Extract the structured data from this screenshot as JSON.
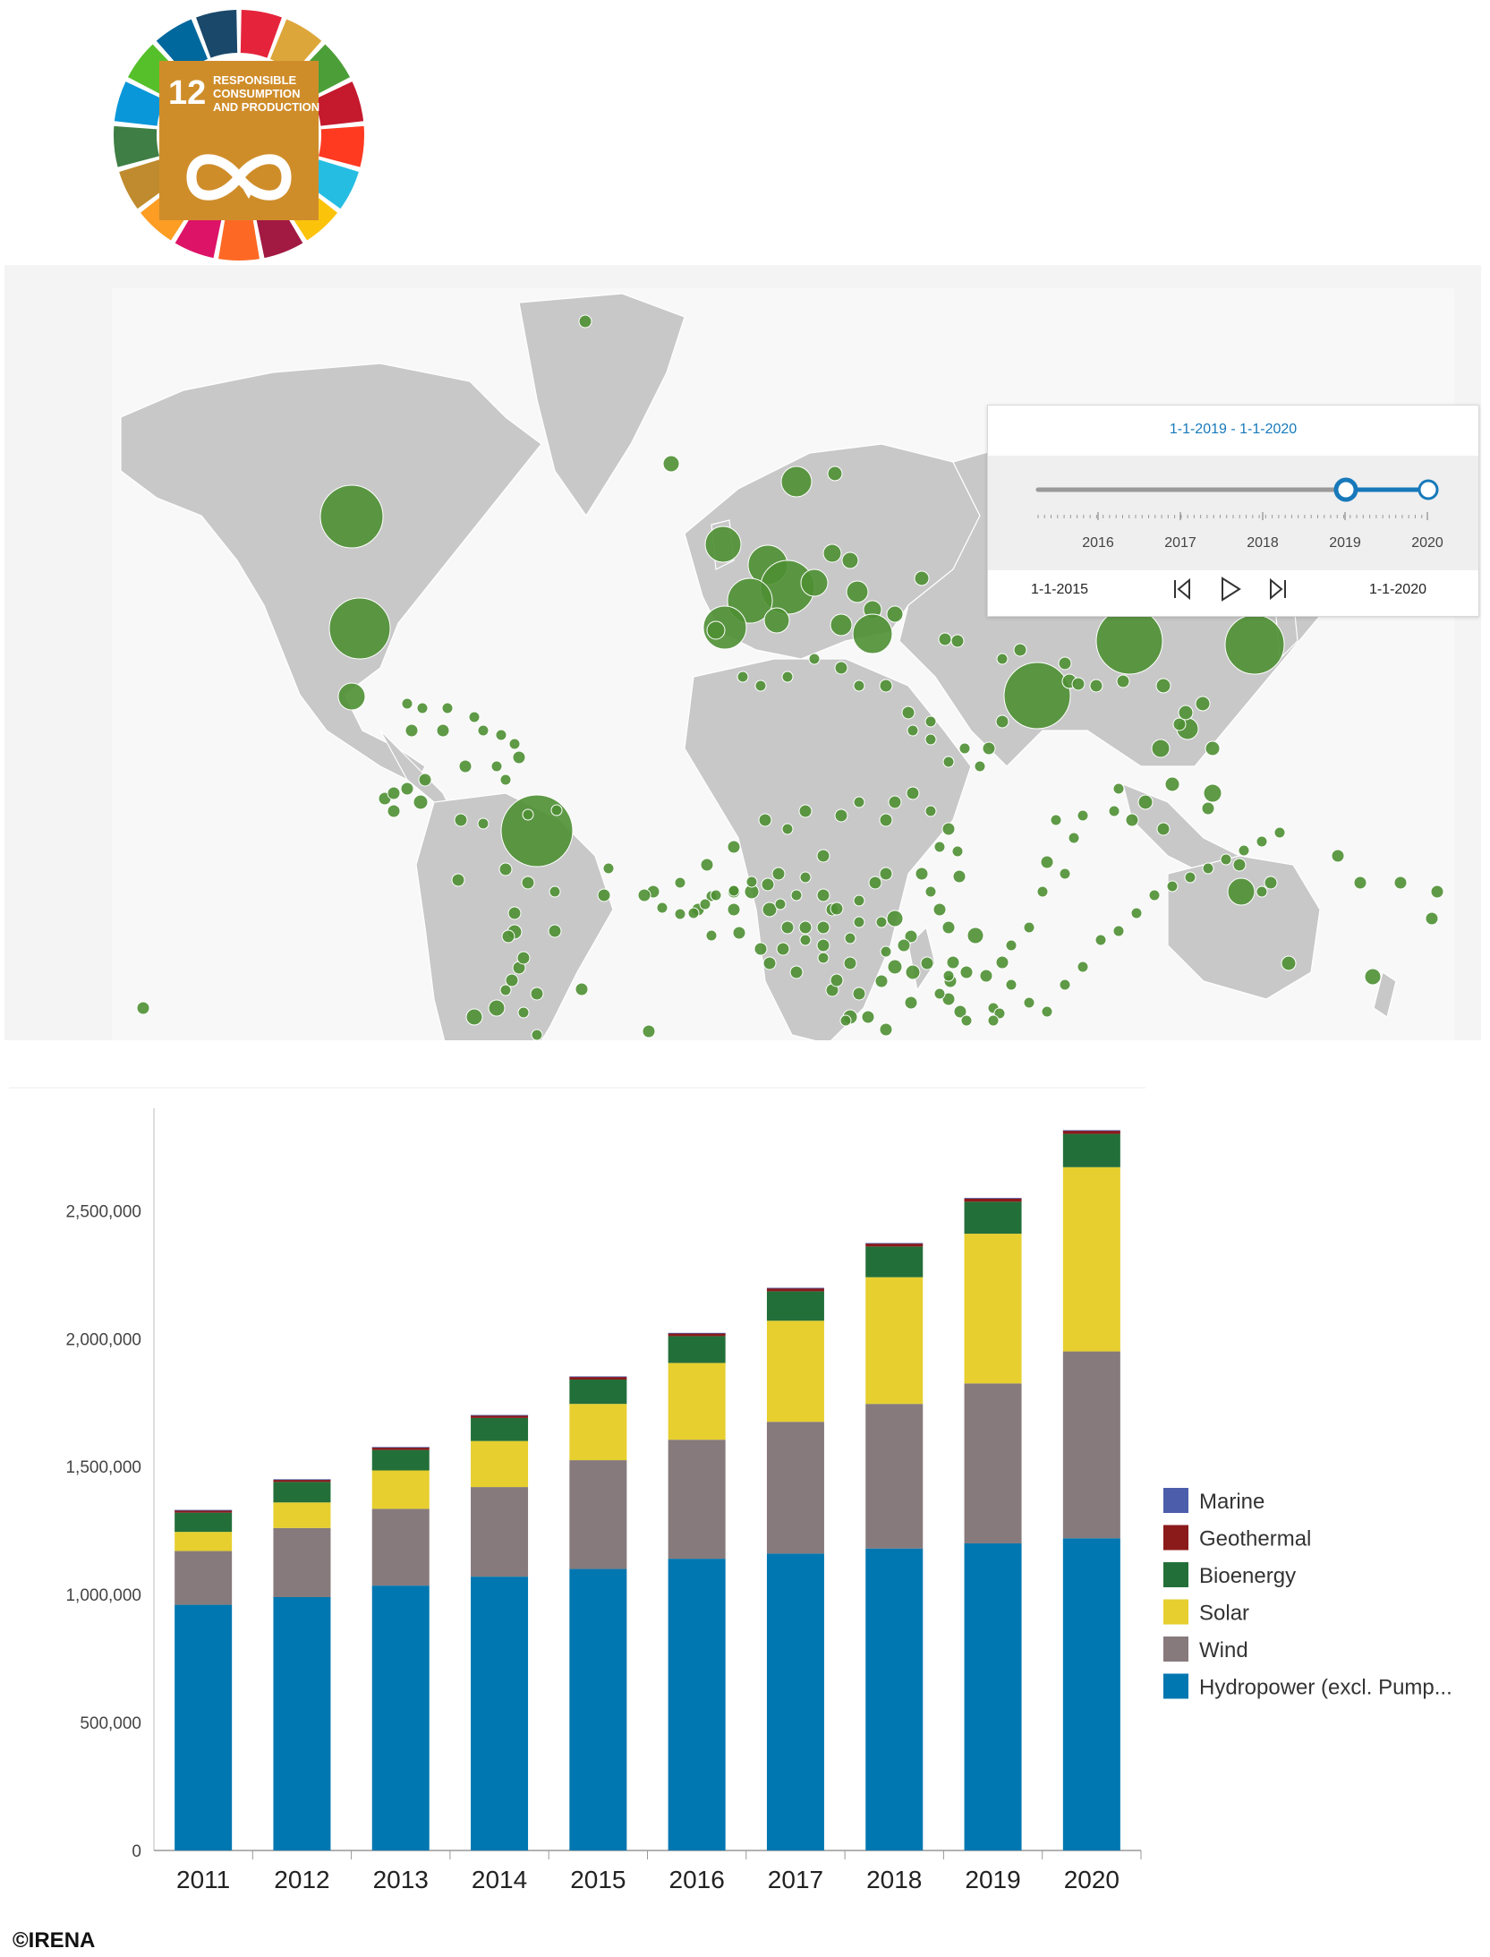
{
  "logo": {
    "goal_number": "12",
    "goal_title_lines": [
      "RESPONSIBLE",
      "CONSUMPTION",
      "AND PRODUCTION"
    ],
    "goal_color": "#cf8d2a"
  },
  "map": {
    "bubble_color": "#4e8f33",
    "land_color": "#c8c8c8",
    "timeline": {
      "range_label": "1-1-2019  -  1-1-2020",
      "start_date": "1-1-2015",
      "end_date": "1-1-2020",
      "ticks": [
        "2016",
        "2017",
        "2018",
        "2019",
        "2020"
      ],
      "selected_range": [
        "2019",
        "2020"
      ],
      "accent_color": "#1779ba",
      "controls": [
        "step-back-icon",
        "play-icon",
        "step-forward-icon"
      ]
    }
  },
  "chart_data": {
    "type": "bar",
    "stacked": true,
    "categories": [
      "2011",
      "2012",
      "2013",
      "2014",
      "2015",
      "2016",
      "2017",
      "2018",
      "2019",
      "2020"
    ],
    "y_ticks": [
      "0",
      "500,000",
      "1,000,000",
      "1,500,000",
      "2,000,000",
      "2,500,000"
    ],
    "ylim": [
      0,
      2900000
    ],
    "grid": false,
    "legend_position": "right",
    "series": [
      {
        "name": "Hydropower (excl. Pump...",
        "color": "#0077b0",
        "values": [
          960000,
          990000,
          1035000,
          1070000,
          1100000,
          1140000,
          1160000,
          1180000,
          1200000,
          1220000
        ]
      },
      {
        "name": "Wind",
        "color": "#877a7c",
        "values": [
          210000,
          270000,
          300000,
          350000,
          425000,
          465000,
          515000,
          565000,
          625000,
          730000
        ]
      },
      {
        "name": "Solar",
        "color": "#e6cf2f",
        "values": [
          75000,
          100000,
          150000,
          180000,
          220000,
          300000,
          395000,
          495000,
          585000,
          720000
        ]
      },
      {
        "name": "Bioenergy",
        "color": "#236f3a",
        "values": [
          75000,
          80000,
          80000,
          90000,
          95000,
          105000,
          115000,
          120000,
          125000,
          130000
        ]
      },
      {
        "name": "Geothermal",
        "color": "#8b1a1a",
        "values": [
          10000,
          10000,
          11000,
          11000,
          12000,
          12000,
          13000,
          13000,
          14000,
          14000
        ]
      },
      {
        "name": "Marine",
        "color": "#4c5eab",
        "values": [
          500,
          500,
          500,
          500,
          500,
          500,
          500,
          500,
          500,
          500
        ]
      }
    ]
  },
  "credit": "©IRENA"
}
